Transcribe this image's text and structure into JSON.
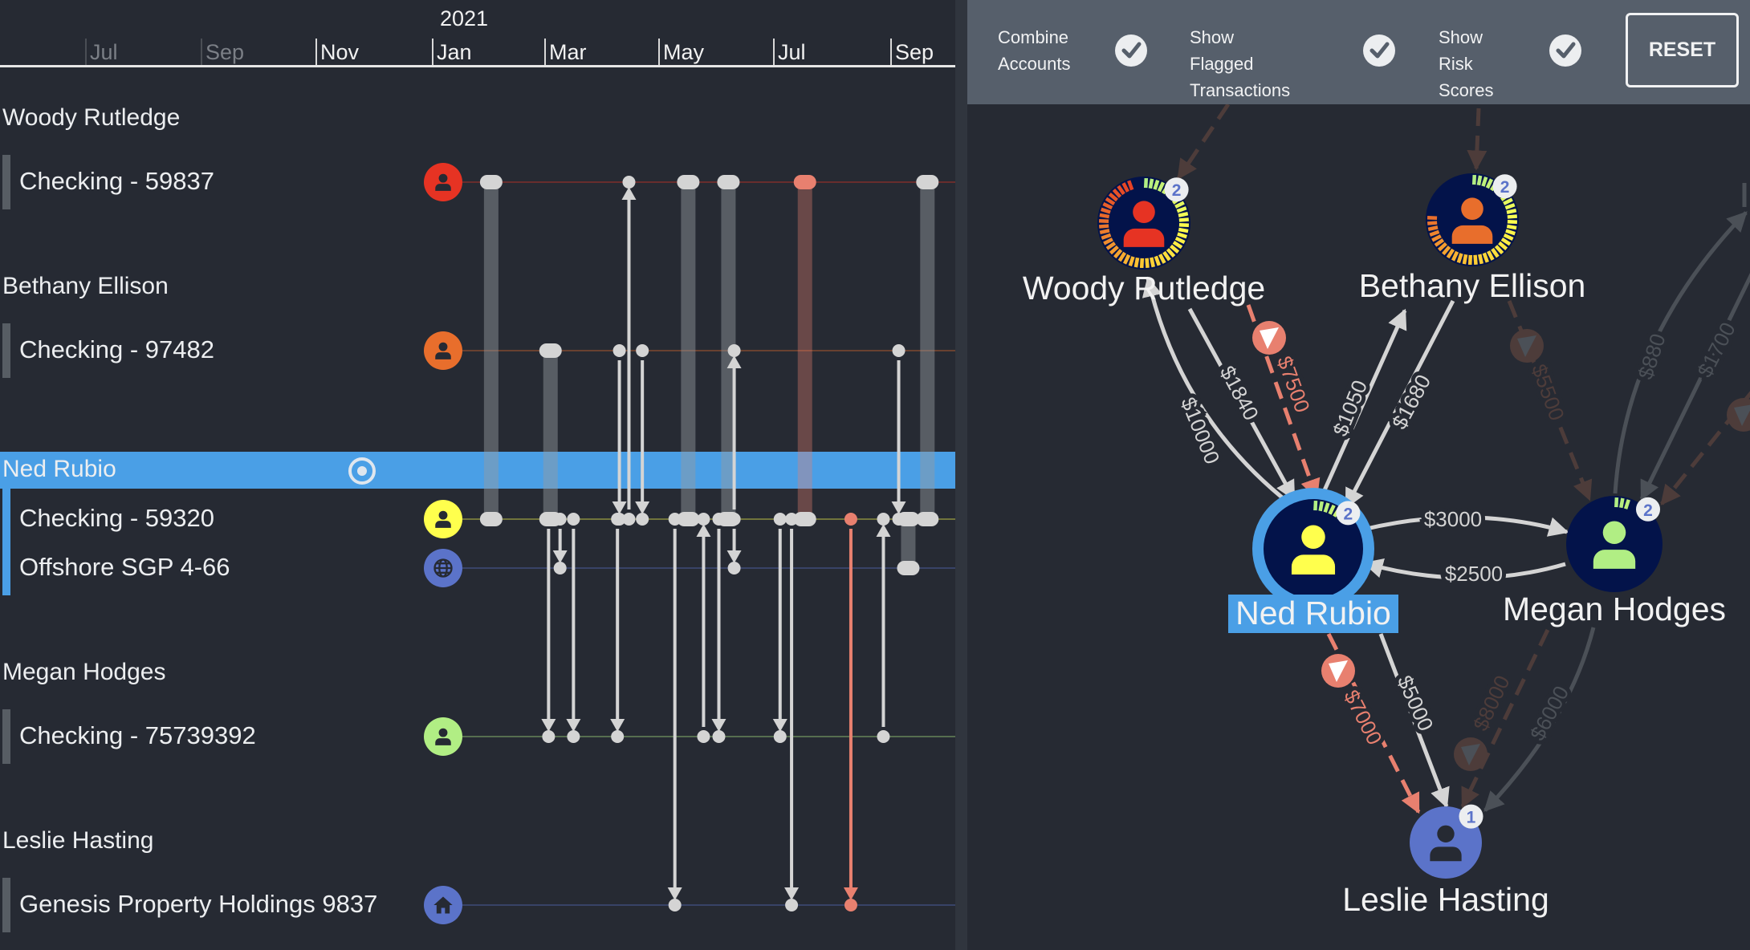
{
  "timeline": {
    "year_label": "2021",
    "months": [
      {
        "label": "ay",
        "past": true
      },
      {
        "label": "Jul",
        "past": true
      },
      {
        "label": "Sep",
        "past": true
      },
      {
        "label": "Nov",
        "past": false
      },
      {
        "label": "Jan",
        "past": false
      },
      {
        "label": "Mar",
        "past": false
      },
      {
        "label": "May",
        "past": false
      },
      {
        "label": "Jul",
        "past": false
      },
      {
        "label": "Sep",
        "past": false
      }
    ],
    "people": [
      {
        "name": "Woody Rutledge",
        "accounts": [
          {
            "key": "woody",
            "label": "Checking - 59837",
            "icon": "person-icon",
            "color": "#e63323"
          }
        ]
      },
      {
        "name": "Bethany Ellison",
        "accounts": [
          {
            "key": "bethany",
            "label": "Checking - 97482",
            "icon": "person-icon",
            "color": "#e86e2c"
          }
        ]
      },
      {
        "name": "Ned Rubio",
        "selected": true,
        "accounts": [
          {
            "key": "ned",
            "label": "Checking - 59320",
            "icon": "person-icon",
            "color": "#ffff4d"
          },
          {
            "key": "offshore",
            "label": "Offshore SGP 4-66",
            "icon": "globe-icon",
            "color": "#5b73c9"
          }
        ]
      },
      {
        "name": "Megan Hodges",
        "accounts": [
          {
            "key": "megan",
            "label": "Checking - 75739392",
            "icon": "person-icon",
            "color": "#b1ee84"
          }
        ]
      },
      {
        "name": "Leslie Hasting",
        "accounts": [
          {
            "key": "leslie",
            "label": "Genesis Property Holdings 9837",
            "icon": "house-icon",
            "color": "#5b73c9"
          }
        ]
      }
    ],
    "transactions": [
      {
        "date": "2021-02-02",
        "from": "woody",
        "to": "ned",
        "style": "bar"
      },
      {
        "date": "2021-03-03",
        "from": "bethany",
        "to": "ned",
        "style": "bar"
      },
      {
        "date": "2021-03-02",
        "from": "ned",
        "to": "megan",
        "style": "arrow"
      },
      {
        "date": "2021-03-08",
        "from": "ned",
        "to": "offshore",
        "style": "arrow"
      },
      {
        "date": "2021-03-15",
        "from": "ned",
        "to": "megan",
        "style": "arrow"
      },
      {
        "date": "2021-04-08",
        "from": "ned",
        "to": "megan",
        "style": "arrow"
      },
      {
        "date": "2021-04-09",
        "from": "bethany",
        "to": "ned",
        "style": "arrow"
      },
      {
        "date": "2021-04-14",
        "from": "ned",
        "to": "woody",
        "style": "arrow"
      },
      {
        "date": "2021-04-21",
        "from": "bethany",
        "to": "ned",
        "style": "arrow"
      },
      {
        "date": "2021-05-08",
        "from": "ned",
        "to": "leslie",
        "style": "arrow"
      },
      {
        "date": "2021-05-15",
        "from": "woody",
        "to": "ned",
        "style": "bar"
      },
      {
        "date": "2021-05-23",
        "from": "megan",
        "to": "ned",
        "style": "arrow"
      },
      {
        "date": "2021-06-01",
        "from": "ned",
        "to": "megan",
        "style": "arrow"
      },
      {
        "date": "2021-06-06",
        "from": "woody",
        "to": "ned",
        "style": "bar"
      },
      {
        "date": "2021-06-09",
        "from": "ned",
        "to": "bethany",
        "style": "arrow"
      },
      {
        "date": "2021-06-09",
        "from": "ned",
        "to": "offshore",
        "style": "arrow"
      },
      {
        "date": "2021-07-03",
        "from": "ned",
        "to": "megan",
        "style": "arrow"
      },
      {
        "date": "2021-07-09",
        "from": "ned",
        "to": "leslie",
        "style": "arrow"
      },
      {
        "date": "2021-07-16",
        "from": "woody",
        "to": "ned",
        "style": "bar",
        "flagged": true
      },
      {
        "date": "2021-08-10",
        "from": "ned",
        "to": "leslie",
        "style": "arrow",
        "flagged": true
      },
      {
        "date": "2021-08-27",
        "from": "megan",
        "to": "ned",
        "style": "arrow"
      },
      {
        "date": "2021-09-05",
        "from": "bethany",
        "to": "ned",
        "style": "arrow"
      },
      {
        "date": "2021-09-10",
        "from": "offshore",
        "to": "ned",
        "style": "bar"
      },
      {
        "date": "2021-09-20",
        "from": "woody",
        "to": "ned",
        "style": "bar"
      }
    ]
  },
  "toolbar": {
    "options": [
      {
        "line1": "Combine",
        "line2": "Accounts",
        "checked": true
      },
      {
        "line1": "Show Flagged",
        "line2": "Transactions",
        "checked": true
      },
      {
        "line1": "Show Risk",
        "line2": "Scores",
        "checked": true
      }
    ],
    "reset_label": "RESET"
  },
  "graph": {
    "nodes": {
      "woody": {
        "label": "Woody Rutledge",
        "badge": "2",
        "color": "#e63323",
        "risk": 0.95
      },
      "bethany": {
        "label": "Bethany Ellison",
        "badge": "2",
        "color": "#e86e2c",
        "risk": 0.78
      },
      "ned": {
        "label": "Ned Rubio",
        "badge": "2",
        "color": "#ffff4d",
        "risk": 0.13,
        "selected": true
      },
      "megan": {
        "label": "Megan Hodges",
        "badge": "2",
        "color": "#b1ee84",
        "risk": 0.07
      },
      "leslie": {
        "label": "Leslie Hasting",
        "badge": "1",
        "color": "#5b73c9"
      }
    },
    "edges": {
      "e10000": "$10000",
      "e1840": "$1840",
      "e7500": "$7500",
      "e1050": "$1050",
      "e1680": "$1680",
      "e3000": "$3000",
      "e2500": "$2500",
      "e5000": "$5000",
      "e7000": "$7000",
      "e8000": "$8000",
      "e6000": "$6000",
      "e5500": "$5500",
      "e880": "$880",
      "e1700": "$1700"
    },
    "colors": {
      "normal": "#d4d4d4",
      "flagged": "#e8806f",
      "faded": "#4b5057",
      "faded_flagged": "#4d3c3a",
      "selection": "#4a9fe6",
      "node_fill": "#03134a",
      "badge_text": "#5b73c9"
    }
  }
}
